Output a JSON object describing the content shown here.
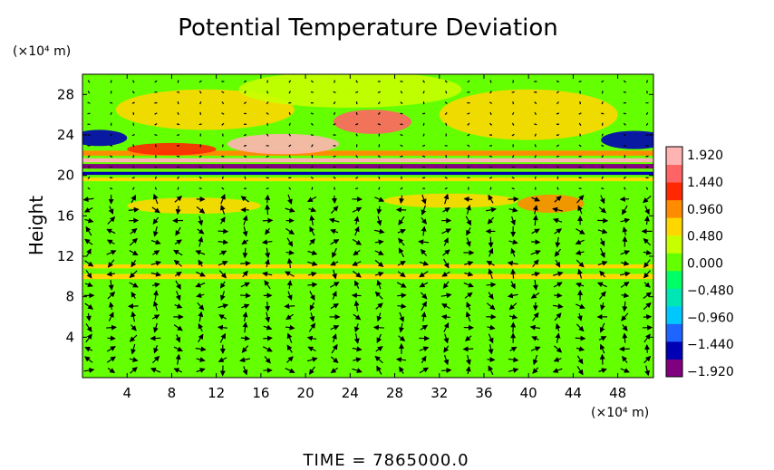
{
  "chart_data": {
    "type": "heatmap",
    "title": "Potential Temperature Deviation",
    "ylabel": "Height",
    "x_unit": "(×10⁴ m)",
    "y_unit": "(×10⁴ m)",
    "footer": "TIME  =  7865000.0",
    "xlim": [
      0,
      51.2
    ],
    "ylim": [
      0,
      30
    ],
    "x_ticks": [
      4,
      8,
      12,
      16,
      20,
      24,
      28,
      32,
      36,
      40,
      44,
      48
    ],
    "y_ticks": [
      4,
      8,
      12,
      16,
      20,
      24,
      28
    ],
    "colorbar": {
      "ticks": [
        "1.920",
        "1.440",
        "0.960",
        "0.480",
        "0.000",
        "−0.480",
        "−0.960",
        "−1.440",
        "−1.920"
      ],
      "range": [
        -1.92,
        1.92
      ],
      "colors": [
        "#800080",
        "#0000b4",
        "#1e64ff",
        "#00c8ff",
        "#00e6b4",
        "#00ff64",
        "#64ff00",
        "#c8ff00",
        "#ffd700",
        "#ff8c00",
        "#ff2800",
        "#ff6464",
        "#ffb4b4"
      ]
    },
    "background_value": 0.12,
    "features": [
      {
        "kind": "band",
        "y_center": 20.9,
        "thickness": 0.45,
        "value": -1.85
      },
      {
        "kind": "band",
        "y_center": 21.5,
        "thickness": 0.4,
        "value": 1.8
      },
      {
        "kind": "band",
        "y_center": 20.2,
        "thickness": 0.3,
        "value": -1.4
      },
      {
        "kind": "band",
        "y_center": 19.6,
        "thickness": 0.35,
        "value": 0.7
      },
      {
        "kind": "band",
        "y_center": 22.2,
        "thickness": 0.5,
        "value": 0.9
      },
      {
        "kind": "blob",
        "x": 26,
        "y": 25.3,
        "rx": 3.5,
        "ry": 1.2,
        "value": 1.6
      },
      {
        "kind": "blob",
        "x": 18,
        "y": 23.1,
        "rx": 5,
        "ry": 1.0,
        "value": 1.7
      },
      {
        "kind": "blob",
        "x": 8,
        "y": 22.6,
        "rx": 4,
        "ry": 0.6,
        "value": 1.3
      },
      {
        "kind": "blob",
        "x": 1.5,
        "y": 23.7,
        "rx": 2.5,
        "ry": 0.8,
        "value": -1.5
      },
      {
        "kind": "blob",
        "x": 49.5,
        "y": 23.5,
        "rx": 3,
        "ry": 0.9,
        "value": -1.5
      },
      {
        "kind": "blob",
        "x": 11,
        "y": 26.5,
        "rx": 8,
        "ry": 2.0,
        "value": 0.6
      },
      {
        "kind": "blob",
        "x": 40,
        "y": 26.0,
        "rx": 8,
        "ry": 2.5,
        "value": 0.6
      },
      {
        "kind": "blob",
        "x": 24,
        "y": 28.5,
        "rx": 10,
        "ry": 1.8,
        "value": 0.35
      },
      {
        "kind": "blob",
        "x": 42,
        "y": 17.2,
        "rx": 3,
        "ry": 0.9,
        "value": 0.9
      },
      {
        "kind": "blob",
        "x": 10,
        "y": 17.0,
        "rx": 6,
        "ry": 0.8,
        "value": 0.55
      },
      {
        "kind": "blob",
        "x": 33,
        "y": 17.5,
        "rx": 6,
        "ry": 0.7,
        "value": 0.5
      },
      {
        "kind": "band",
        "y_center": 10.0,
        "thickness": 0.5,
        "value": 0.55
      },
      {
        "kind": "band",
        "y_center": 11.0,
        "thickness": 0.4,
        "value": 0.45
      }
    ]
  }
}
